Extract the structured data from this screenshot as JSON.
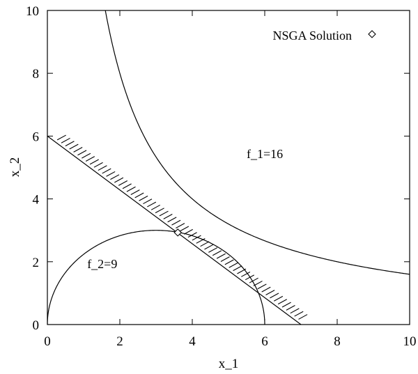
{
  "chart_data": {
    "type": "line",
    "title": "",
    "xlabel": "x_1",
    "ylabel": "x_2",
    "xlim": [
      0,
      10
    ],
    "ylim": [
      0,
      10
    ],
    "xticks": [
      0,
      2,
      4,
      6,
      8,
      10
    ],
    "yticks": [
      0,
      2,
      4,
      6,
      8,
      10
    ],
    "xtick_labels": [
      "0",
      "2",
      "4",
      "6",
      "8",
      "10"
    ],
    "ytick_labels": [
      "0",
      "2",
      "4",
      "6",
      "8",
      "10"
    ],
    "grid": false,
    "legend_position": "top-right",
    "series": [
      {
        "kind": "curve",
        "equation": "x_1 * x_2 = 16",
        "label": "f_1=16",
        "color": "#000000",
        "x_range": [
          1.6,
          10
        ]
      },
      {
        "kind": "curve",
        "equation": "(x_1 - 3)^2 + x_2^2 = 9, x_2 >= 0",
        "label": "f_2=9",
        "color": "#000000",
        "x_range": [
          0,
          6
        ]
      },
      {
        "kind": "constraint",
        "equation": "6 x_1 + 7 x_2 = 42",
        "points": [
          [
            0,
            6
          ],
          [
            7,
            0
          ]
        ],
        "hatched_side": "upper-right",
        "color": "#000000"
      },
      {
        "kind": "scatter",
        "name": "NSGA Solution",
        "marker": "diamond",
        "points": [
          [
            3.6,
            2.93
          ]
        ],
        "color": "#000000"
      }
    ],
    "annotations": [
      {
        "text": "f_1=16",
        "x": 5.5,
        "y": 5.3
      },
      {
        "text": "f_2=9",
        "x": 1.1,
        "y": 1.8
      }
    ],
    "legend": [
      {
        "label": "NSGA Solution",
        "marker": "diamond"
      }
    ]
  }
}
